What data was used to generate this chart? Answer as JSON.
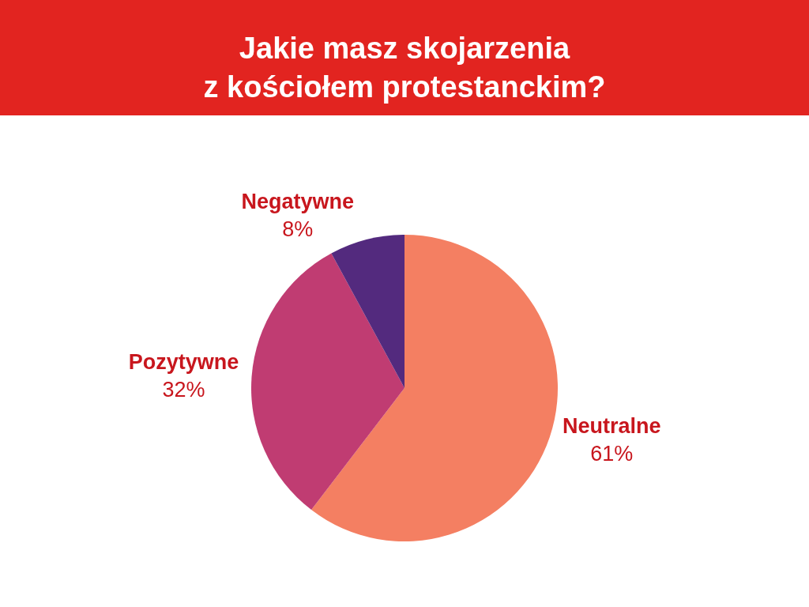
{
  "chart_data": {
    "type": "pie",
    "title": "Jakie masz skojarzenia\nz kościołem protestanckim?",
    "categories": [
      "Neutralne",
      "Pozytywne",
      "Negatywne"
    ],
    "values": [
      61,
      32,
      8
    ],
    "value_labels": [
      "61%",
      "32%",
      "8%"
    ],
    "colors": [
      "#f47f62",
      "#c03c72",
      "#532a7e"
    ]
  }
}
